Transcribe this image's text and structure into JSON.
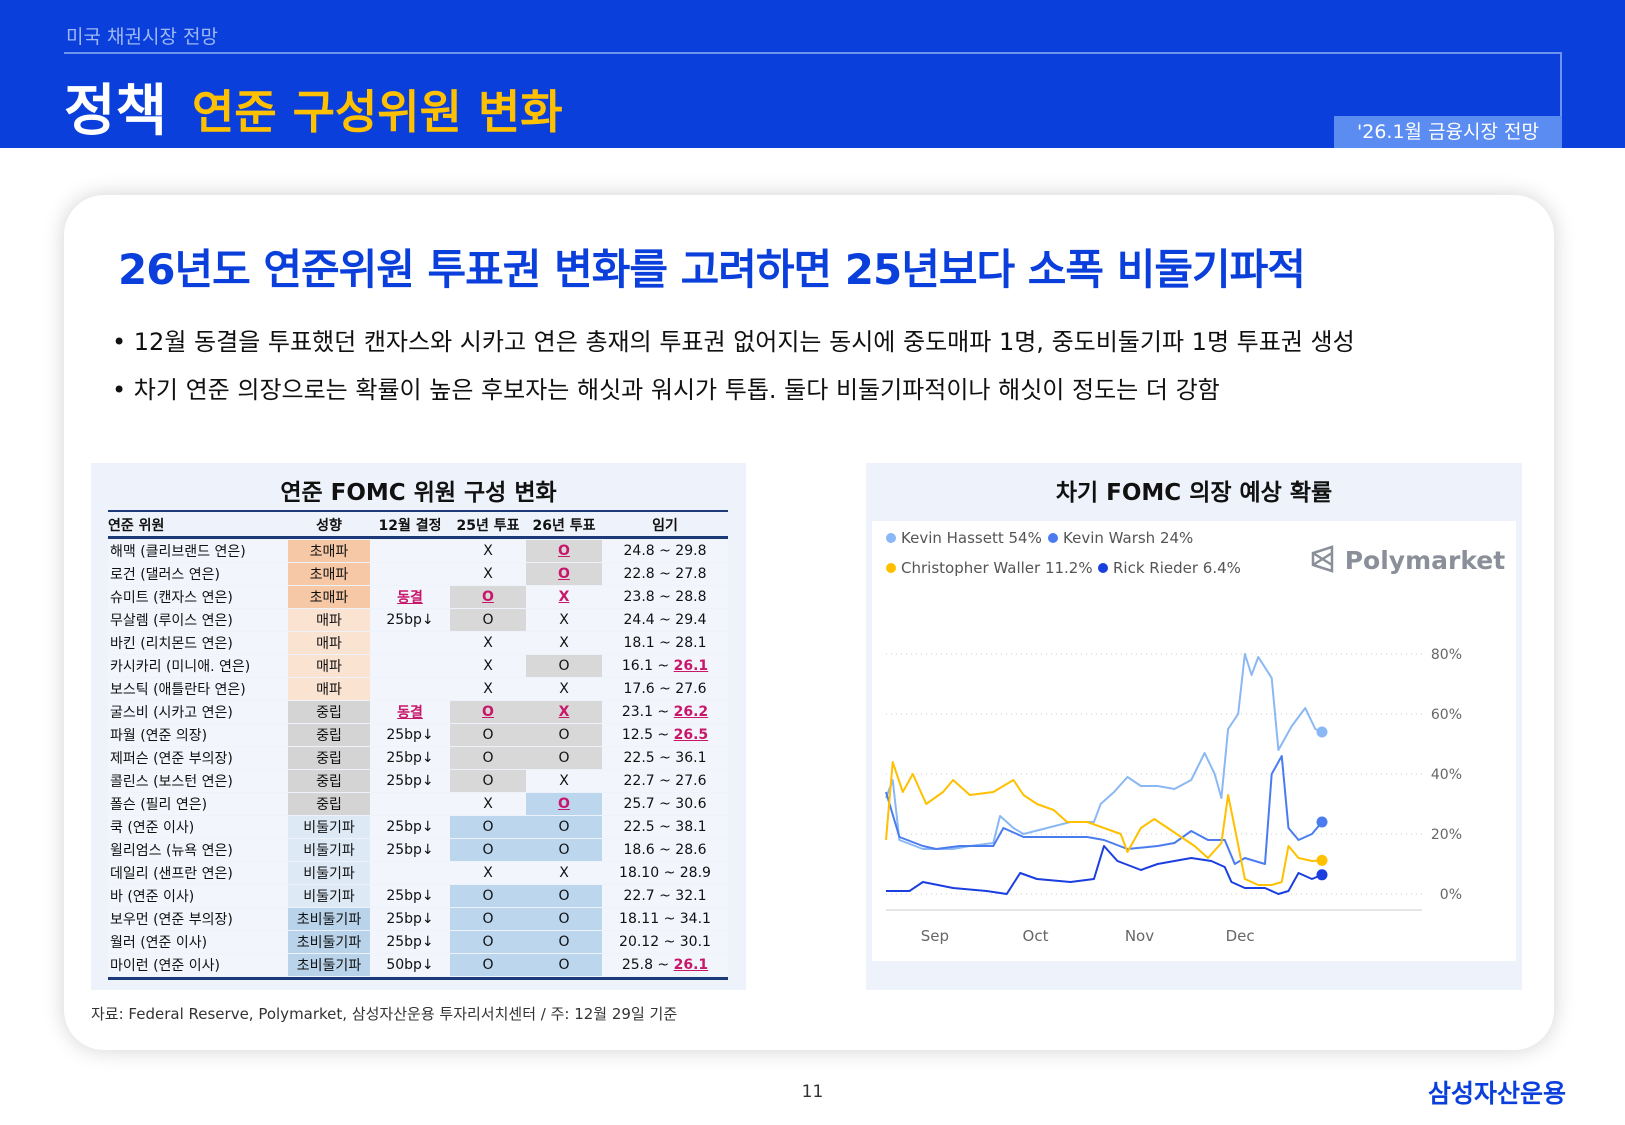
{
  "header": {
    "section": "미국 채권시장 전망",
    "title_main": "정책",
    "title_sub": "연준 구성위원 변화",
    "badge": "'26.1월 금융시장 전망"
  },
  "headline": "26년도 연준위원 투표권 변화를 고려하면 25년보다 소폭 비둘기파적",
  "bullets": [
    "• 12월 동결을 투표했던 캔자스와 시카고 연은 총재의 투표권 없어지는 동시에 중도매파 1명, 중도비둘기파 1명 투표권 생성",
    "• 차기 연준 의장으로는 확률이 높은 후보자는 해싯과 워시가 투톱. 둘다 비둘기파적이나 해싯이 정도는 더 강함"
  ],
  "table": {
    "title": "연준 FOMC 위원 구성 변화",
    "columns": [
      "연준 위원",
      "성향",
      "12월 결정",
      "25년 투표",
      "26년 투표",
      "임기"
    ],
    "stance_colors": {
      "초매파": "#f6c8a6",
      "매파": "#fbe3d2",
      "중립": "#d4d4d4",
      "비둘기파": "#dde9f5",
      "초비둘기파": "#b9d3ea"
    },
    "rows": [
      {
        "name": "해맥 (클리브랜드 연은)",
        "stance": "초매파",
        "dec": {
          "v": ""
        },
        "v25": {
          "v": "X"
        },
        "v26": {
          "v": "O",
          "red": true,
          "bg": "g"
        },
        "term": "24.8 ~ 29.8"
      },
      {
        "name": "로건 (댈러스 연은)",
        "stance": "초매파",
        "dec": {
          "v": ""
        },
        "v25": {
          "v": "X"
        },
        "v26": {
          "v": "O",
          "red": true,
          "bg": "g"
        },
        "term": "22.8 ~ 27.8"
      },
      {
        "name": "슈미트 (캔자스 연은)",
        "stance": "초매파",
        "dec": {
          "v": "동결",
          "red": true
        },
        "v25": {
          "v": "O",
          "red": true,
          "bg": "g"
        },
        "v26": {
          "v": "X",
          "red": true
        },
        "term": "23.8 ~ 28.8"
      },
      {
        "name": "무살렘 (루이스 연은)",
        "stance": "매파",
        "dec": {
          "v": "25bp↓"
        },
        "v25": {
          "v": "O",
          "bg": "g"
        },
        "v26": {
          "v": "X"
        },
        "term": "24.4 ~ 29.4"
      },
      {
        "name": "바킨 (리치몬드 연은)",
        "stance": "매파",
        "dec": {
          "v": ""
        },
        "v25": {
          "v": "X"
        },
        "v26": {
          "v": "X"
        },
        "term": "18.1 ~ 28.1"
      },
      {
        "name": "카시카리 (미니애. 연은)",
        "stance": "매파",
        "dec": {
          "v": ""
        },
        "v25": {
          "v": "X"
        },
        "v26": {
          "v": "O",
          "bg": "g"
        },
        "term": "16.1 ~ ",
        "term_end": "26.1"
      },
      {
        "name": "보스틱 (애틀란타 연은)",
        "stance": "매파",
        "dec": {
          "v": ""
        },
        "v25": {
          "v": "X"
        },
        "v26": {
          "v": "X"
        },
        "term": "17.6 ~ 27.6"
      },
      {
        "name": "굴스비 (시카고 연은)",
        "stance": "중립",
        "dec": {
          "v": "동결",
          "red": true
        },
        "v25": {
          "v": "O",
          "red": true,
          "bg": "g"
        },
        "v26": {
          "v": "X",
          "red": true,
          "bg": "g"
        },
        "term": "23.1 ~ ",
        "term_end": "26.2"
      },
      {
        "name": "파월 (연준 의장)",
        "stance": "중립",
        "dec": {
          "v": "25bp↓"
        },
        "v25": {
          "v": "O",
          "bg": "g"
        },
        "v26": {
          "v": "O",
          "bg": "g"
        },
        "term": "12.5 ~ ",
        "term_end": "26.5"
      },
      {
        "name": "제퍼슨 (연준 부의장)",
        "stance": "중립",
        "dec": {
          "v": "25bp↓"
        },
        "v25": {
          "v": "O",
          "bg": "g"
        },
        "v26": {
          "v": "O",
          "bg": "g"
        },
        "term": "22.5 ~ 36.1"
      },
      {
        "name": "콜린스 (보스턴 연은)",
        "stance": "중립",
        "dec": {
          "v": "25bp↓"
        },
        "v25": {
          "v": "O",
          "bg": "g"
        },
        "v26": {
          "v": "X"
        },
        "term": "22.7 ~ 27.6"
      },
      {
        "name": "폴슨 (필리 연은)",
        "stance": "중립",
        "dec": {
          "v": ""
        },
        "v25": {
          "v": "X"
        },
        "v26": {
          "v": "O",
          "red": true,
          "bg": "b"
        },
        "term": "25.7 ~ 30.6"
      },
      {
        "name": "쿡 (연준 이사)",
        "stance": "비둘기파",
        "dec": {
          "v": "25bp↓"
        },
        "v25": {
          "v": "O",
          "bg": "b"
        },
        "v26": {
          "v": "O",
          "bg": "b"
        },
        "term": "22.5 ~ 38.1"
      },
      {
        "name": "윌리엄스 (뉴욕 연은)",
        "stance": "비둘기파",
        "dec": {
          "v": "25bp↓"
        },
        "v25": {
          "v": "O",
          "bg": "b"
        },
        "v26": {
          "v": "O",
          "bg": "b"
        },
        "term": "18.6 ~ 28.6"
      },
      {
        "name": "데일리 (샌프란 연은)",
        "stance": "비둘기파",
        "dec": {
          "v": ""
        },
        "v25": {
          "v": "X"
        },
        "v26": {
          "v": "X"
        },
        "term": "18.10 ~ 28.9"
      },
      {
        "name": "바 (연준 이사)",
        "stance": "비둘기파",
        "dec": {
          "v": "25bp↓"
        },
        "v25": {
          "v": "O",
          "bg": "b"
        },
        "v26": {
          "v": "O",
          "bg": "b"
        },
        "term": "22.7 ~ 32.1"
      },
      {
        "name": "보우먼 (연준 부의장)",
        "stance": "초비둘기파",
        "dec": {
          "v": "25bp↓"
        },
        "v25": {
          "v": "O",
          "bg": "b"
        },
        "v26": {
          "v": "O",
          "bg": "b"
        },
        "term": "18.11 ~ 34.1"
      },
      {
        "name": "월러 (연준 이사)",
        "stance": "초비둘기파",
        "dec": {
          "v": "25bp↓"
        },
        "v25": {
          "v": "O",
          "bg": "b"
        },
        "v26": {
          "v": "O",
          "bg": "b"
        },
        "term": "20.12 ~ 30.1"
      },
      {
        "name": "마이런 (연준 이사)",
        "stance": "초비둘기파",
        "dec": {
          "v": "50bp↓"
        },
        "v25": {
          "v": "O",
          "bg": "b"
        },
        "v26": {
          "v": "O",
          "bg": "b"
        },
        "term": "25.8 ~ ",
        "term_end": "26.1"
      }
    ]
  },
  "chart_data": {
    "type": "line",
    "title": "차기 FOMC 의장 예상 확률",
    "brand": "Polymarket",
    "x_ticks": [
      "Sep",
      "Oct",
      "Nov",
      "Dec"
    ],
    "y_ticks": [
      "0%",
      "20%",
      "40%",
      "60%",
      "80%"
    ],
    "ylim": [
      0,
      85
    ],
    "xlim": [
      "2025-08-21",
      "2025-12-29"
    ],
    "grid": "horizontal dotted",
    "legend": "top-left",
    "series": [
      {
        "name": "Kevin Hassett",
        "label": "Kevin Hassett 54%",
        "color": "#8ab8f5",
        "points": [
          [
            "2025-08-21",
            32
          ],
          [
            "2025-08-23",
            38
          ],
          [
            "2025-08-25",
            18
          ],
          [
            "2025-09-01",
            15
          ],
          [
            "2025-09-10",
            15
          ],
          [
            "2025-09-15",
            16
          ],
          [
            "2025-09-22",
            17
          ],
          [
            "2025-09-24",
            26
          ],
          [
            "2025-09-28",
            22
          ],
          [
            "2025-10-01",
            20
          ],
          [
            "2025-10-08",
            22
          ],
          [
            "2025-10-15",
            24
          ],
          [
            "2025-10-22",
            24
          ],
          [
            "2025-10-24",
            30
          ],
          [
            "2025-10-28",
            34
          ],
          [
            "2025-11-01",
            39
          ],
          [
            "2025-11-05",
            36
          ],
          [
            "2025-11-10",
            36
          ],
          [
            "2025-11-15",
            35
          ],
          [
            "2025-11-20",
            38
          ],
          [
            "2025-11-24",
            47
          ],
          [
            "2025-11-27",
            40
          ],
          [
            "2025-11-29",
            32
          ],
          [
            "2025-12-01",
            55
          ],
          [
            "2025-12-04",
            60
          ],
          [
            "2025-12-06",
            80
          ],
          [
            "2025-12-08",
            73
          ],
          [
            "2025-12-10",
            79
          ],
          [
            "2025-12-14",
            72
          ],
          [
            "2025-12-16",
            48
          ],
          [
            "2025-12-18",
            52
          ],
          [
            "2025-12-20",
            56
          ],
          [
            "2025-12-24",
            62
          ],
          [
            "2025-12-27",
            55
          ],
          [
            "2025-12-29",
            54
          ]
        ]
      },
      {
        "name": "Kevin Warsh",
        "label": "Kevin Warsh 24%",
        "color": "#4a7cf0",
        "points": [
          [
            "2025-08-21",
            34
          ],
          [
            "2025-08-25",
            19
          ],
          [
            "2025-09-01",
            16
          ],
          [
            "2025-09-05",
            15
          ],
          [
            "2025-09-12",
            16
          ],
          [
            "2025-09-18",
            16
          ],
          [
            "2025-09-22",
            16
          ],
          [
            "2025-09-25",
            22
          ],
          [
            "2025-10-01",
            19
          ],
          [
            "2025-10-10",
            19
          ],
          [
            "2025-10-20",
            19
          ],
          [
            "2025-10-25",
            18
          ],
          [
            "2025-11-01",
            15
          ],
          [
            "2025-11-10",
            16
          ],
          [
            "2025-11-15",
            17
          ],
          [
            "2025-11-20",
            21
          ],
          [
            "2025-11-25",
            18
          ],
          [
            "2025-11-30",
            18
          ],
          [
            "2025-12-03",
            10
          ],
          [
            "2025-12-06",
            12
          ],
          [
            "2025-12-12",
            10
          ],
          [
            "2025-12-14",
            40
          ],
          [
            "2025-12-17",
            46
          ],
          [
            "2025-12-19",
            22
          ],
          [
            "2025-12-22",
            18
          ],
          [
            "2025-12-26",
            20
          ],
          [
            "2025-12-29",
            24
          ]
        ]
      },
      {
        "name": "Christopher Waller",
        "label": "Christopher Waller 11.2%",
        "color": "#ffc000",
        "points": [
          [
            "2025-08-21",
            18
          ],
          [
            "2025-08-23",
            44
          ],
          [
            "2025-08-26",
            34
          ],
          [
            "2025-08-29",
            40
          ],
          [
            "2025-09-02",
            30
          ],
          [
            "2025-09-07",
            34
          ],
          [
            "2025-09-10",
            38
          ],
          [
            "2025-09-15",
            33
          ],
          [
            "2025-09-22",
            34
          ],
          [
            "2025-09-28",
            38
          ],
          [
            "2025-10-01",
            33
          ],
          [
            "2025-10-05",
            30
          ],
          [
            "2025-10-10",
            28
          ],
          [
            "2025-10-14",
            24
          ],
          [
            "2025-10-20",
            24
          ],
          [
            "2025-10-25",
            22
          ],
          [
            "2025-10-30",
            20
          ],
          [
            "2025-11-01",
            14
          ],
          [
            "2025-11-05",
            22
          ],
          [
            "2025-11-09",
            25
          ],
          [
            "2025-11-13",
            22
          ],
          [
            "2025-11-17",
            19
          ],
          [
            "2025-11-21",
            16
          ],
          [
            "2025-11-25",
            12
          ],
          [
            "2025-11-29",
            17
          ],
          [
            "2025-12-01",
            33
          ],
          [
            "2025-12-03",
            22
          ],
          [
            "2025-12-06",
            5
          ],
          [
            "2025-12-10",
            3
          ],
          [
            "2025-12-14",
            3
          ],
          [
            "2025-12-17",
            4
          ],
          [
            "2025-12-19",
            16
          ],
          [
            "2025-12-22",
            12
          ],
          [
            "2025-12-26",
            11
          ],
          [
            "2025-12-29",
            11.2
          ]
        ]
      },
      {
        "name": "Rick Rieder",
        "label": "Rick Rieder 6.4%",
        "color": "#1a3ee0",
        "points": [
          [
            "2025-08-21",
            1
          ],
          [
            "2025-08-28",
            1
          ],
          [
            "2025-09-01",
            4
          ],
          [
            "2025-09-10",
            2
          ],
          [
            "2025-09-20",
            1
          ],
          [
            "2025-09-26",
            0
          ],
          [
            "2025-09-30",
            7
          ],
          [
            "2025-10-05",
            5
          ],
          [
            "2025-10-15",
            4
          ],
          [
            "2025-10-22",
            5
          ],
          [
            "2025-10-25",
            16
          ],
          [
            "2025-10-29",
            11
          ],
          [
            "2025-11-05",
            8
          ],
          [
            "2025-11-10",
            10
          ],
          [
            "2025-11-15",
            11
          ],
          [
            "2025-11-20",
            12
          ],
          [
            "2025-11-26",
            11
          ],
          [
            "2025-11-30",
            9
          ],
          [
            "2025-12-02",
            4
          ],
          [
            "2025-12-06",
            2
          ],
          [
            "2025-12-12",
            2
          ],
          [
            "2025-12-16",
            0
          ],
          [
            "2025-12-19",
            1
          ],
          [
            "2025-12-22",
            7
          ],
          [
            "2025-12-26",
            5
          ],
          [
            "2025-12-29",
            6.4
          ]
        ]
      }
    ]
  },
  "footer": {
    "source": "자료: Federal Reserve, Polymarket, 삼성자산운용 투자리서치센터 / 주: 12월 29일 기준",
    "page": "11",
    "logo": "삼성자산운용"
  }
}
